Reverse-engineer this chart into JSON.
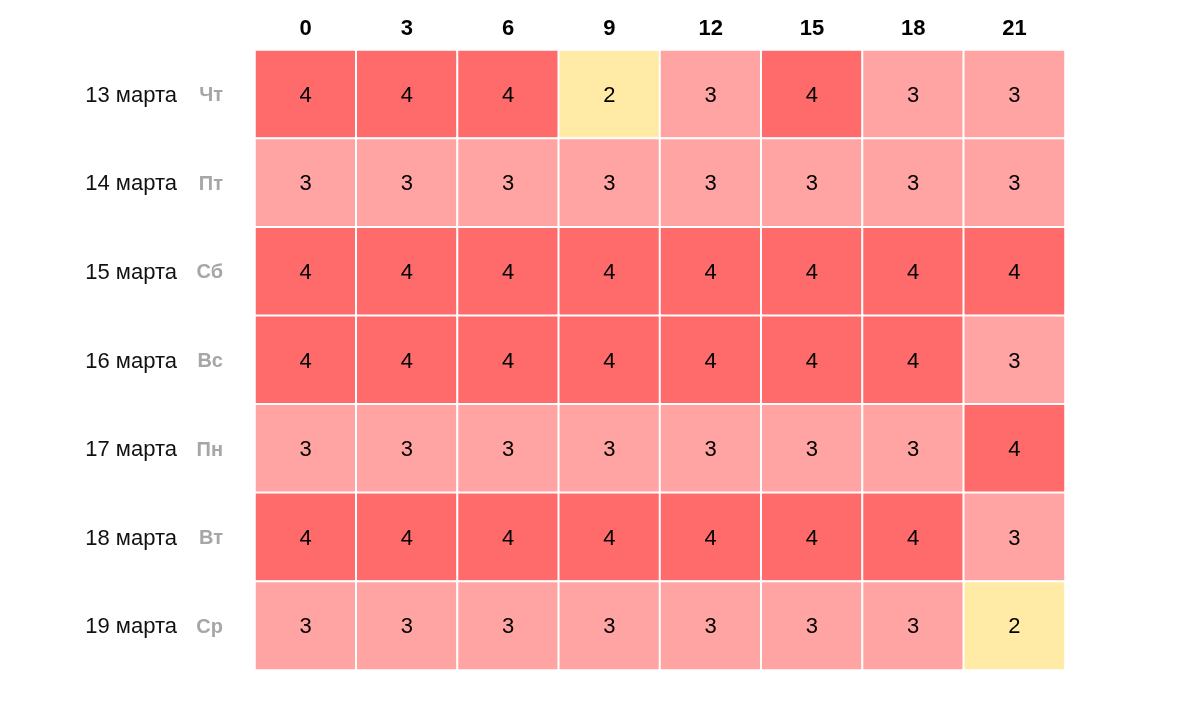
{
  "chart_data": {
    "type": "heatmap",
    "categories": [
      "0",
      "3",
      "6",
      "9",
      "12",
      "15",
      "18",
      "21"
    ],
    "y_categories": [
      "13 марта",
      "14 марта",
      "15 марта",
      "16 марта",
      "17 марта",
      "18 марта",
      "19 марта"
    ],
    "y2_categories": [
      "Чт",
      "Пт",
      "Сб",
      "Вс",
      "Пн",
      "Вт",
      "Ср"
    ],
    "cells": [
      [
        4,
        4,
        4,
        2,
        3,
        4,
        3,
        3
      ],
      [
        3,
        3,
        3,
        3,
        3,
        3,
        3,
        3
      ],
      [
        4,
        4,
        4,
        4,
        4,
        4,
        4,
        4
      ],
      [
        4,
        4,
        4,
        4,
        4,
        4,
        4,
        3
      ],
      [
        3,
        3,
        3,
        3,
        3,
        3,
        3,
        4
      ],
      [
        4,
        4,
        4,
        4,
        4,
        4,
        4,
        3
      ],
      [
        3,
        3,
        3,
        3,
        3,
        3,
        3,
        2
      ]
    ],
    "colors": [
      [
        "#ff6b6b",
        "#ff6b6b",
        "#ff6b6b",
        "#ffeba5",
        "#ffa3a3",
        "#ff6b6b",
        "#ffa3a3",
        "#ffa3a3"
      ],
      [
        "#ffa3a3",
        "#ffa3a3",
        "#ffa3a3",
        "#ffa3a3",
        "#ffa3a3",
        "#ffa3a3",
        "#ffa3a3",
        "#ffa3a3"
      ],
      [
        "#ff6b6b",
        "#ff6b6b",
        "#ff6b6b",
        "#ff6b6b",
        "#ff6b6b",
        "#ff6b6b",
        "#ff6b6b",
        "#ff6b6b"
      ],
      [
        "#ff6b6b",
        "#ff6b6b",
        "#ff6b6b",
        "#ff6b6b",
        "#ff6b6b",
        "#ff6b6b",
        "#ff6b6b",
        "#ffa3a3"
      ],
      [
        "#ffa3a3",
        "#ffa3a3",
        "#ffa3a3",
        "#ffa3a3",
        "#ffa3a3",
        "#ffa3a3",
        "#ffa3a3",
        "#ff6b6b"
      ],
      [
        "#ff6b6b",
        "#ff6b6b",
        "#ff6b6b",
        "#ff6b6b",
        "#ff6b6b",
        "#ff6b6b",
        "#ff6b6b",
        "#ffa3a3"
      ],
      [
        "#ffa3a3",
        "#ffa3a3",
        "#ffa3a3",
        "#ffa3a3",
        "#ffa3a3",
        "#ffa3a3",
        "#ffa3a3",
        "#ffeba5"
      ]
    ],
    "data_labels": true
  }
}
